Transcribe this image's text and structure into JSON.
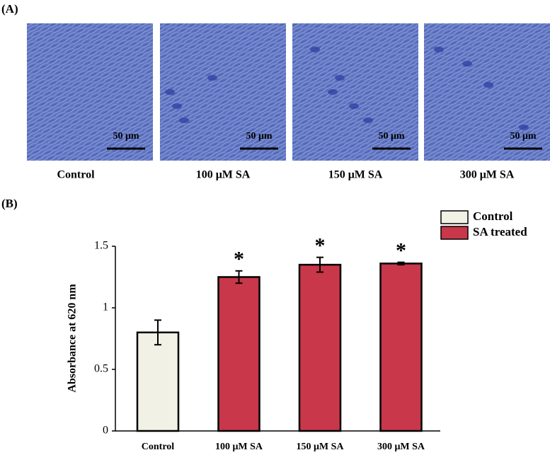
{
  "panel_a": {
    "label": "(A)",
    "images": [
      {
        "caption": "Control",
        "scale_bar": "50 μm"
      },
      {
        "caption": "100 μM SA",
        "scale_bar": "50 μm"
      },
      {
        "caption": "150 μM SA",
        "scale_bar": "50 μm"
      },
      {
        "caption": "300 μM SA",
        "scale_bar": "50 μm"
      }
    ]
  },
  "chart_data": {
    "type": "bar",
    "panel_label": "(B)",
    "y_label": "Absorbance at 620 nm",
    "categories": [
      "Control",
      "100 μM SA",
      "150 μM SA",
      "300 μM SA"
    ],
    "series": [
      {
        "name": "Control",
        "color": "#f1f1e5",
        "values": [
          0.8,
          null,
          null,
          null
        ],
        "errors": [
          0.1,
          null,
          null,
          null
        ]
      },
      {
        "name": "SA treated",
        "color": "#c8374a",
        "values": [
          null,
          1.25,
          1.35,
          1.36
        ],
        "errors": [
          null,
          0.05,
          0.06,
          0.01
        ]
      }
    ],
    "significance": [
      null,
      "*",
      "*",
      "*"
    ],
    "ylim": [
      0,
      1.5
    ],
    "yticks": [
      0,
      0.5,
      1,
      1.5
    ],
    "grid": false,
    "legend": "top-right"
  }
}
